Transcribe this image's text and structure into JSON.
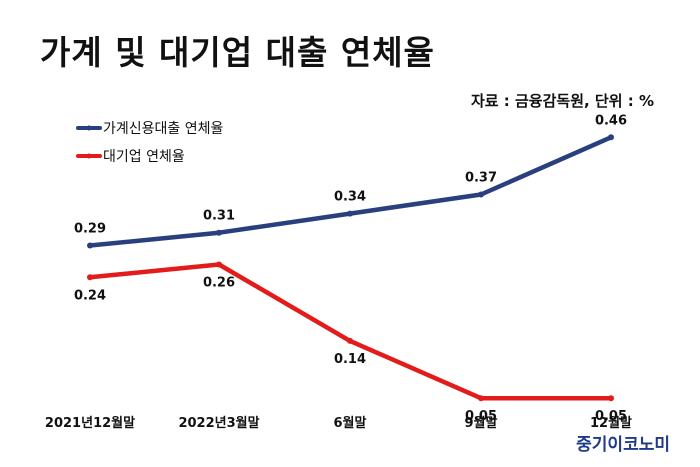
{
  "title": "가계 및 대기업 대출 연체율",
  "source_note": "자료 : 금융감독원, 단위 : %",
  "brand": "중기이코노미",
  "chart_data": {
    "type": "line",
    "title": "가계 및 대기업 대출 연체율",
    "categories": [
      "2021년12월말",
      "2022년3월말",
      "6월말",
      "9월말",
      "12월말"
    ],
    "ylim": [
      0,
      0.55
    ],
    "grid": false,
    "legend_position": "top-left",
    "series": [
      {
        "name": "가계신용대출 연체율",
        "color": "#2a3f7e",
        "values": [
          0.29,
          0.31,
          0.34,
          0.37,
          0.46
        ],
        "labels": [
          "0.29",
          "0.31",
          "0.34",
          "0.37",
          "0.46"
        ]
      },
      {
        "name": "대기업 연체율",
        "color": "#e31b1b",
        "values": [
          0.24,
          0.26,
          0.14,
          0.05,
          0.05
        ],
        "labels": [
          "0.24",
          "0.26",
          "0.14",
          "0.05",
          "0.05"
        ]
      }
    ]
  }
}
